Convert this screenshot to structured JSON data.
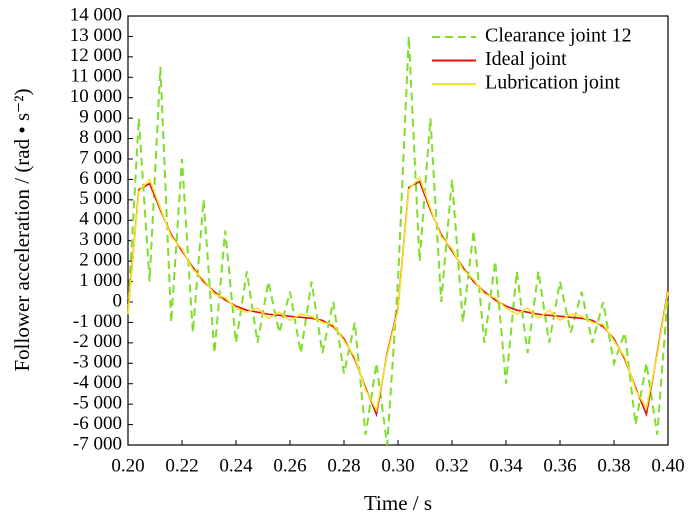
{
  "chart_data": {
    "type": "line",
    "xlabel": "Time / s",
    "ylabel": "Follower acceleration / (rad • s⁻²)",
    "x": [
      0.2,
      0.204,
      0.208,
      0.212,
      0.216,
      0.22,
      0.224,
      0.228,
      0.232,
      0.236,
      0.24,
      0.244,
      0.248,
      0.252,
      0.256,
      0.26,
      0.264,
      0.268,
      0.272,
      0.276,
      0.28,
      0.284,
      0.288,
      0.292,
      0.296,
      0.3,
      0.304,
      0.308,
      0.312,
      0.316,
      0.32,
      0.324,
      0.328,
      0.332,
      0.336,
      0.34,
      0.344,
      0.348,
      0.352,
      0.356,
      0.36,
      0.364,
      0.368,
      0.372,
      0.376,
      0.38,
      0.384,
      0.388,
      0.392,
      0.396,
      0.4
    ],
    "series": [
      {
        "name": "Clearance joint 12",
        "color": "#80dd2c",
        "dashed": true,
        "values": [
          -500,
          9000,
          1000,
          11500,
          -1000,
          7000,
          -1500,
          5000,
          -2500,
          3500,
          -2000,
          1500,
          -2000,
          1000,
          -1500,
          500,
          -2500,
          1000,
          -2500,
          0,
          -3500,
          -1000,
          -6500,
          -3000,
          -7000,
          1000,
          13000,
          2000,
          9000,
          0,
          6000,
          -1000,
          3500,
          -2000,
          2000,
          -4000,
          1500,
          -2500,
          1500,
          -2000,
          1000,
          -1500,
          500,
          -2000,
          0,
          -3000,
          -1500,
          -6000,
          -3000,
          -6500,
          500
        ]
      },
      {
        "name": "Ideal joint",
        "color": "#dd1111",
        "dashed": false,
        "values": [
          -500,
          5500,
          5800,
          4500,
          3300,
          2500,
          1700,
          1000,
          500,
          100,
          -200,
          -400,
          -500,
          -600,
          -650,
          -700,
          -750,
          -800,
          -900,
          -1200,
          -1800,
          -2800,
          -4200,
          -5500,
          -2500,
          -300,
          5600,
          5900,
          4500,
          3300,
          2500,
          1700,
          1000,
          500,
          100,
          -200,
          -400,
          -500,
          -600,
          -650,
          -700,
          -750,
          -800,
          -900,
          -1200,
          -1800,
          -2800,
          -4200,
          -5500,
          -2500,
          600
        ]
      },
      {
        "name": "Lubrication joint",
        "color": "#f5e52a",
        "dashed": false,
        "values": [
          -600,
          5400,
          6000,
          4600,
          3200,
          2600,
          1600,
          1100,
          400,
          200,
          -300,
          -500,
          -300,
          -800,
          -500,
          -900,
          -600,
          -700,
          -1000,
          -1100,
          -1900,
          -2700,
          -4300,
          -5300,
          -2600,
          -400,
          5500,
          6100,
          4600,
          3200,
          2600,
          1600,
          1100,
          400,
          200,
          -300,
          -600,
          -300,
          -800,
          -400,
          -900,
          -600,
          -700,
          -1000,
          -1100,
          -1900,
          -2700,
          -4300,
          -5200,
          -2600,
          500
        ]
      }
    ],
    "xlim": [
      0.2,
      0.4
    ],
    "xticks": [
      {
        "value": 0.2,
        "label": "0.20"
      },
      0.22,
      0.24,
      0.26,
      0.28,
      {
        "value": 0.3,
        "label": "0.30"
      },
      0.32,
      0.34,
      0.36,
      0.38,
      {
        "value": 0.4,
        "label": "0.40"
      }
    ],
    "ylim": [
      -7000,
      14000
    ],
    "yticks": [
      {
        "value": -7000,
        "label": "-7 000"
      },
      {
        "value": -6000,
        "label": "-6 000"
      },
      {
        "value": -5000,
        "label": "-5 000"
      },
      {
        "value": -4000,
        "label": "-4 000"
      },
      {
        "value": -3000,
        "label": "-3 000"
      },
      {
        "value": -2000,
        "label": "-2 000"
      },
      {
        "value": -1000,
        "label": "-1 000"
      },
      0,
      {
        "value": 1000,
        "label": "1 000"
      },
      {
        "value": 2000,
        "label": "2 000"
      },
      {
        "value": 3000,
        "label": "3 000"
      },
      {
        "value": 4000,
        "label": "4 000"
      },
      {
        "value": 5000,
        "label": "5 000"
      },
      {
        "value": 6000,
        "label": "6 000"
      },
      {
        "value": 7000,
        "label": "7 000"
      },
      {
        "value": 8000,
        "label": "8 000"
      },
      {
        "value": 9000,
        "label": "9 000"
      },
      {
        "value": 10000,
        "label": "10 000"
      },
      {
        "value": 11000,
        "label": "11 000"
      },
      {
        "value": 12000,
        "label": "12 000"
      },
      {
        "value": 13000,
        "label": "13 000"
      },
      {
        "value": 14000,
        "label": "14 000"
      }
    ],
    "legend": "upper right"
  }
}
